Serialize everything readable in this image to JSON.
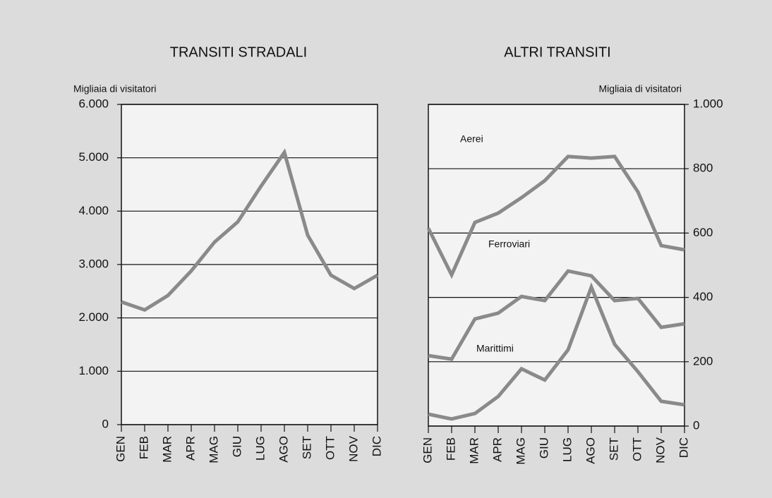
{
  "chart_data": [
    {
      "type": "line",
      "title": "TRANSITI STRADALI",
      "ylabel": "Migliaia di visitatori",
      "categories": [
        "GEN",
        "FEB",
        "MAR",
        "APR",
        "MAG",
        "GIU",
        "LUG",
        "AGO",
        "SET",
        "OTT",
        "NOV",
        "DIC"
      ],
      "series": [
        {
          "name": null,
          "color": "#8a8a8a",
          "values": [
            2300,
            2150,
            2420,
            2880,
            3420,
            3800,
            4470,
            5100,
            3550,
            2800,
            2550,
            2800
          ]
        }
      ],
      "ylim": [
        0,
        6000
      ],
      "yticks": [
        0,
        {
          "value": 1000,
          "label": "1.000"
        },
        {
          "value": 2000,
          "label": "2.000"
        },
        {
          "value": 3000,
          "label": "3.000"
        },
        {
          "value": 4000,
          "label": "4.000"
        },
        {
          "value": 5000,
          "label": "5.000"
        },
        {
          "value": 6000,
          "label": "6.000"
        }
      ],
      "grid": true
    },
    {
      "type": "line",
      "title": "ALTRI TRANSITI",
      "ylabel": "Migliaia di visitatori",
      "categories": [
        "GEN",
        "FEB",
        "MAR",
        "APR",
        "MAG",
        "GIU",
        "LUG",
        "AGO",
        "SET",
        "OTT",
        "NOV",
        "DIC"
      ],
      "series": [
        {
          "name": "Aerei",
          "color": "#8a8a8a",
          "values": [
            615,
            470,
            633,
            662,
            710,
            763,
            838,
            833,
            838,
            728,
            561,
            548
          ]
        },
        {
          "name": "Ferroviari",
          "color": "#8a8a8a",
          "values": [
            219,
            208,
            333,
            351,
            403,
            390,
            482,
            467,
            390,
            397,
            307,
            318
          ]
        },
        {
          "name": "Marittimi",
          "color": "#8a8a8a",
          "values": [
            37,
            22,
            39,
            92,
            178,
            143,
            237,
            432,
            254,
            169,
            77,
            66
          ]
        }
      ],
      "ylim": [
        0,
        1000
      ],
      "yticks": [
        0,
        200,
        400,
        600,
        800,
        {
          "value": 1000,
          "label": "1.000"
        }
      ],
      "grid": true
    }
  ]
}
